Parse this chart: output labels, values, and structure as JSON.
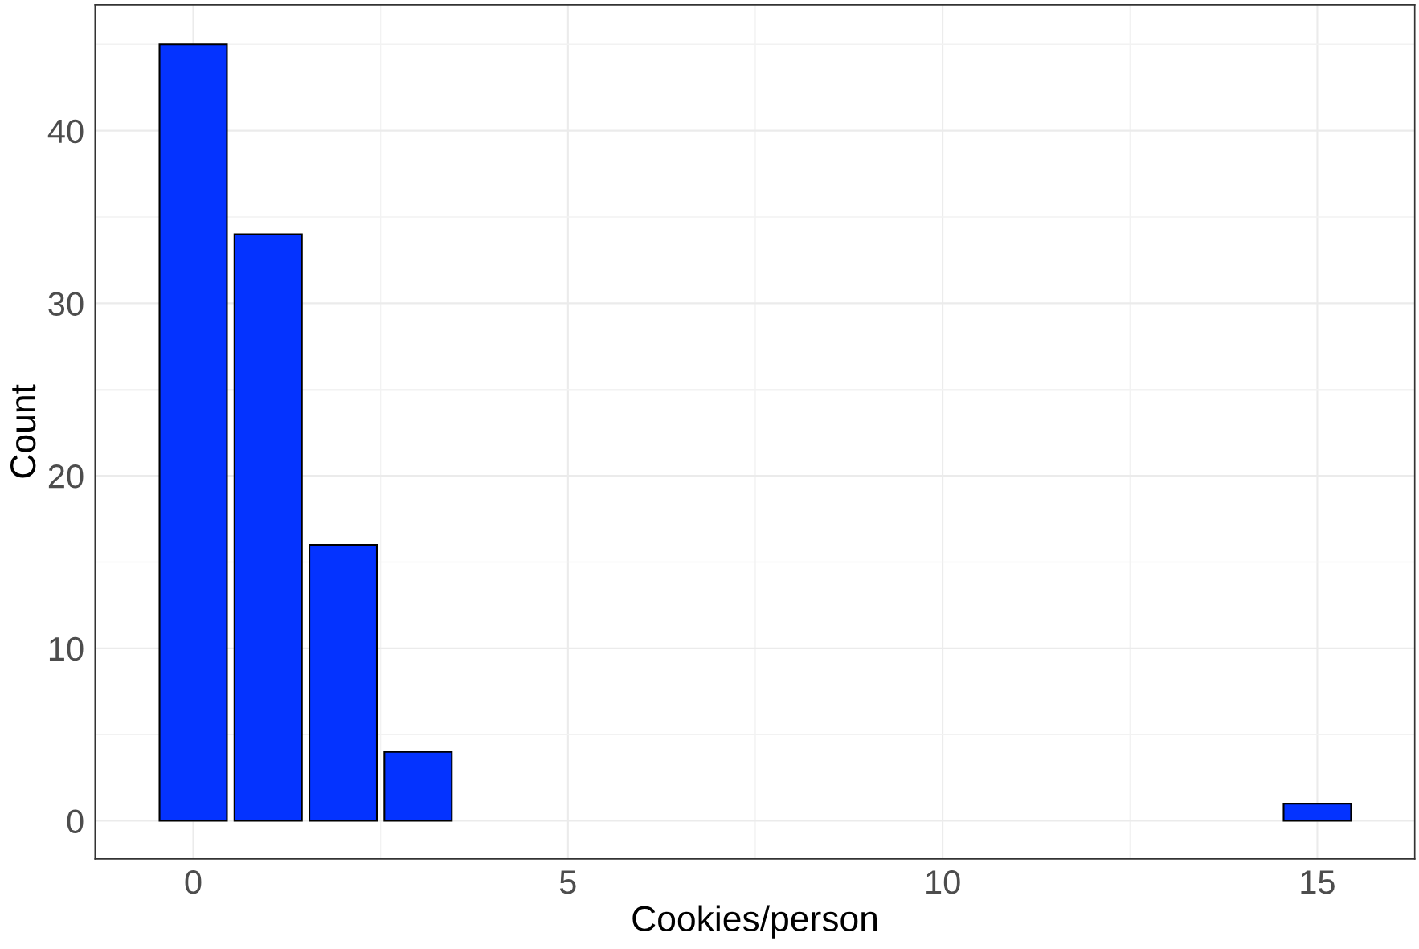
{
  "chart_data": {
    "type": "bar",
    "xlabel": "Cookies/person",
    "ylabel": "Count",
    "x": [
      0,
      1,
      2,
      3,
      15
    ],
    "values": [
      45,
      34,
      16,
      4,
      1
    ],
    "color": "#0433ff",
    "xlim": [
      -1.31,
      16.3
    ],
    "xticks": [
      0,
      5,
      10,
      15
    ],
    "ylim": [
      -2.2,
      47.3
    ],
    "yticks": [
      0,
      10,
      20,
      30,
      40
    ],
    "grid": true
  }
}
